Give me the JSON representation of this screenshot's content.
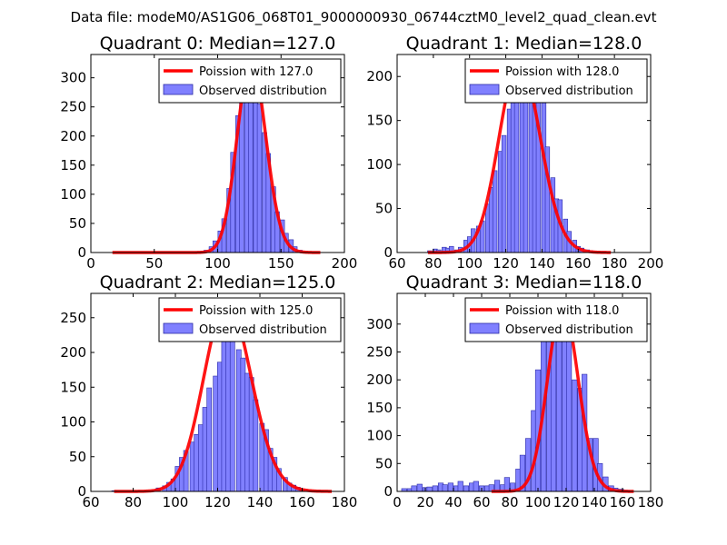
{
  "figure": {
    "suptitle": "Data file: modeM0/AS1G06_068T01_9000000930_06744cztM0_level2_quad_clean.evt"
  },
  "colors": {
    "poisson_line": "#ff0000",
    "hist_fill": "#8080ff",
    "hist_edge": "#2a2aa6",
    "axes": "#000000"
  },
  "chart_data": [
    {
      "type": "bar",
      "title": "Quadrant 0: Median=127.0",
      "xlim": [
        0,
        200
      ],
      "ylim": [
        0,
        340
      ],
      "xticks": [
        0,
        50,
        100,
        150,
        200
      ],
      "yticks": [
        0,
        50,
        100,
        150,
        200,
        250,
        300
      ],
      "bin_width": 3.5,
      "legend": {
        "position": "upper-right",
        "entries": [
          "Poission with 127.0",
          "Observed distribution"
        ]
      },
      "line": {
        "name": "Poission with 127.0",
        "lambda": 127.0,
        "peak": 330,
        "x_range": [
          17,
          181
        ]
      },
      "bins_x": [
        84,
        88,
        91,
        95,
        98,
        102,
        105,
        109,
        112,
        116,
        119,
        123,
        126,
        130,
        133,
        137,
        140,
        144,
        147,
        151,
        154,
        158,
        161,
        165
      ],
      "values": [
        1,
        2,
        4,
        10,
        20,
        37,
        58,
        110,
        172,
        235,
        270,
        300,
        300,
        275,
        255,
        206,
        170,
        113,
        70,
        56,
        33,
        22,
        10,
        4
      ]
    },
    {
      "type": "bar",
      "title": "Quadrant 1: Median=128.0",
      "xlim": [
        60,
        200
      ],
      "ylim": [
        0,
        225
      ],
      "xticks": [
        60,
        80,
        100,
        120,
        140,
        160,
        180,
        200
      ],
      "yticks": [
        0,
        50,
        100,
        150,
        200
      ],
      "bin_width": 2.4,
      "legend": {
        "position": "upper-right",
        "entries": [
          "Poission with 128.0",
          "Observed distribution"
        ]
      },
      "line": {
        "name": "Poission with 128.0",
        "lambda": 128.0,
        "peak": 217,
        "x_range": [
          77,
          178
        ]
      },
      "bins_x": [
        78,
        81,
        83,
        86,
        88,
        90,
        93,
        95,
        98,
        100,
        102,
        105,
        107,
        110,
        112,
        114,
        117,
        119,
        122,
        124,
        126,
        129,
        131,
        134,
        136,
        138,
        141,
        143,
        146,
        148,
        150,
        153,
        155,
        158,
        160,
        162,
        165,
        167,
        170,
        172,
        174
      ],
      "values": [
        2,
        4,
        3,
        6,
        5,
        7,
        3,
        6,
        14,
        18,
        27,
        30,
        36,
        55,
        74,
        93,
        115,
        133,
        163,
        170,
        175,
        180,
        196,
        208,
        200,
        197,
        170,
        120,
        85,
        61,
        60,
        38,
        24,
        14,
        7,
        5,
        3,
        2,
        1,
        1,
        1
      ]
    },
    {
      "type": "bar",
      "title": "Quadrant 2: Median=125.0",
      "xlim": [
        60,
        180
      ],
      "ylim": [
        0,
        285
      ],
      "xticks": [
        60,
        80,
        100,
        120,
        140,
        160,
        180
      ],
      "yticks": [
        0,
        50,
        100,
        150,
        200,
        250
      ],
      "bin_width": 2.2,
      "legend": {
        "position": "upper-right",
        "entries": [
          "Poission with 125.0",
          "Observed distribution"
        ]
      },
      "line": {
        "name": "Poission with 125.0",
        "lambda": 125.0,
        "peak": 272,
        "x_range": [
          71,
          174
        ]
      },
      "bins_x": [
        71,
        82,
        90,
        92,
        95,
        97,
        99,
        101,
        103,
        105,
        108,
        110,
        112,
        114,
        116,
        119,
        121,
        123,
        125,
        127,
        130,
        132,
        134,
        136,
        138,
        141,
        143,
        145,
        147,
        149,
        152,
        154,
        156,
        158,
        160,
        163,
        165,
        167,
        169
      ],
      "values": [
        1,
        1,
        2,
        5,
        8,
        13,
        18,
        36,
        49,
        59,
        71,
        82,
        96,
        121,
        149,
        166,
        186,
        240,
        275,
        240,
        204,
        192,
        170,
        164,
        132,
        98,
        89,
        62,
        49,
        33,
        20,
        12,
        9,
        6,
        3,
        2,
        1,
        1,
        1
      ]
    },
    {
      "type": "bar",
      "title": "Quadrant 3: Median=118.0",
      "xlim": [
        0,
        180
      ],
      "ylim": [
        0,
        355
      ],
      "xticks": [
        0,
        20,
        40,
        60,
        80,
        100,
        120,
        140,
        160,
        180
      ],
      "yticks": [
        0,
        50,
        100,
        150,
        200,
        250,
        300
      ],
      "bin_width": 3.6,
      "legend": {
        "position": "upper-right",
        "entries": [
          "Poission with 118.0",
          "Observed distribution"
        ]
      },
      "line": {
        "name": "Poission with 118.0",
        "lambda": 118.0,
        "peak": 333,
        "x_range": [
          67,
          168
        ]
      },
      "bins_x": [
        5,
        9,
        12,
        16,
        20,
        23,
        27,
        31,
        34,
        38,
        42,
        45,
        49,
        53,
        56,
        60,
        64,
        67,
        71,
        75,
        78,
        82,
        86,
        89,
        93,
        97,
        100,
        104,
        108,
        111,
        115,
        119,
        122,
        126,
        130,
        133,
        137,
        141,
        144,
        148,
        152,
        155,
        159,
        163
      ],
      "values": [
        5,
        5,
        10,
        13,
        7,
        8,
        10,
        15,
        12,
        15,
        10,
        18,
        10,
        15,
        18,
        10,
        10,
        12,
        20,
        12,
        25,
        15,
        40,
        65,
        95,
        145,
        218,
        270,
        305,
        315,
        330,
        335,
        290,
        200,
        185,
        210,
        95,
        95,
        50,
        26,
        10,
        6,
        4,
        2
      ]
    }
  ]
}
